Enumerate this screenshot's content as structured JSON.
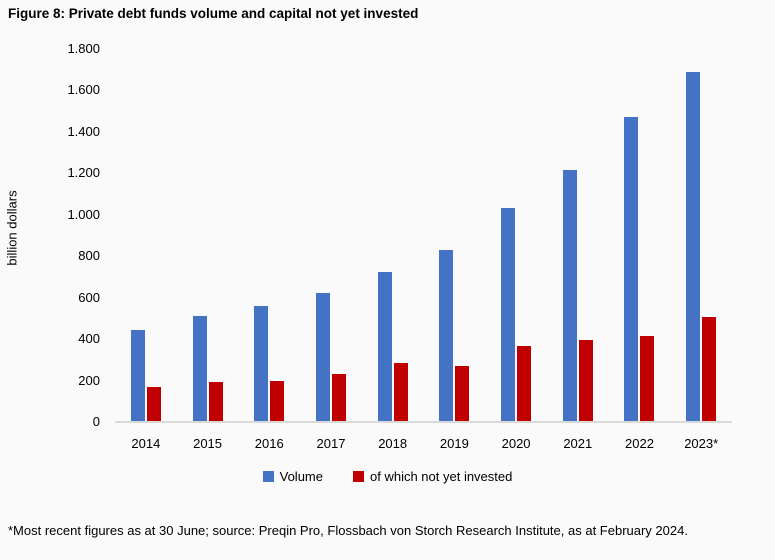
{
  "footnote": "*Most recent figures as at 30 June; source: Preqin Pro, Flossbach von Storch Research Institute, as at February 2024.",
  "colors": {
    "volume_bar": "#4472C4",
    "not_invested_bar": "#C00000",
    "axis_line": "#D9D9D9",
    "background": "#FAFAFA"
  },
  "chart_data": {
    "type": "bar",
    "title": "Figure 8: Private debt funds volume and capital not yet invested",
    "xlabel": "",
    "ylabel": "billion dollars",
    "categories": [
      "2014",
      "2015",
      "2016",
      "2017",
      "2018",
      "2019",
      "2020",
      "2021",
      "2022",
      "2023*"
    ],
    "series": [
      {
        "name": "Volume",
        "color": "#4472C4",
        "values": [
          440,
          505,
          555,
          620,
          720,
          825,
          1030,
          1210,
          1465,
          1685
        ]
      },
      {
        "name": "of which not yet invested",
        "color": "#C00000",
        "values": [
          165,
          190,
          195,
          225,
          280,
          265,
          360,
          390,
          410,
          500
        ]
      }
    ],
    "ylim": [
      0,
      1800
    ],
    "ytick_step": 200,
    "ytick_labels": [
      "0",
      "200",
      "400",
      "600",
      "800",
      "1.000",
      "1.200",
      "1.400",
      "1.600",
      "1.800"
    ],
    "grid": false,
    "legend_position": "bottom"
  }
}
